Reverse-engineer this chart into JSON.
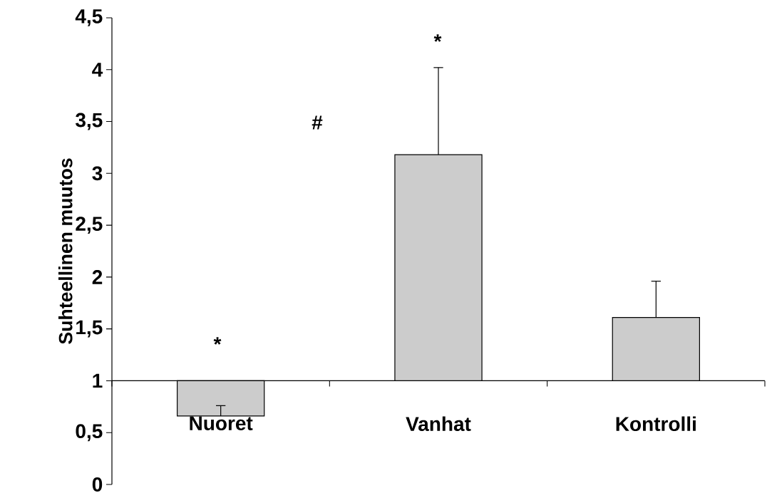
{
  "chart_data": {
    "type": "bar",
    "ylabel": "Suhteellinen muutos",
    "categories": [
      "Nuoret",
      "Vanhat",
      "Kontrolli"
    ],
    "base": [
      1,
      1,
      1
    ],
    "values": [
      -0.34,
      2.18,
      0.61
    ],
    "errors": [
      [
        0.66,
        0.76
      ],
      [
        3.18,
        4.02
      ],
      [
        1.61,
        1.96
      ]
    ],
    "color": "#cccccc",
    "ylim": [
      0,
      4.5
    ],
    "yticks": [
      0,
      {
        "value": 0.5,
        "label": "0,5"
      },
      1,
      {
        "value": 1.5,
        "label": "1,5"
      },
      2,
      {
        "value": 2.5,
        "label": "2,5"
      },
      3,
      {
        "value": 3.5,
        "label": "3,5"
      },
      4,
      {
        "value": 4.5,
        "label": "4,5"
      }
    ],
    "annotations": [
      "*",
      "*",
      "#"
    ]
  }
}
